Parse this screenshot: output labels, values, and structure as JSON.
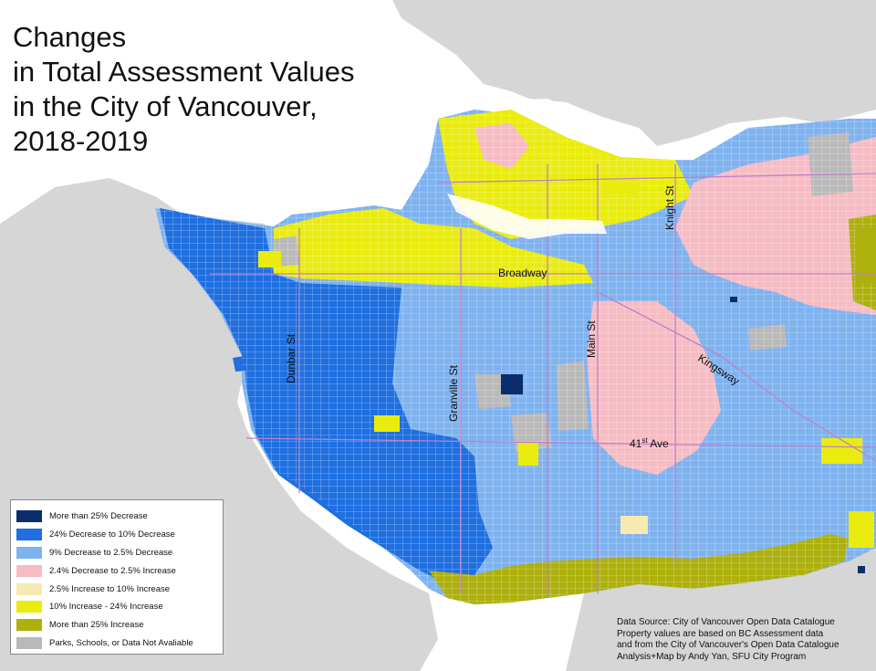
{
  "title_lines": [
    "Changes",
    "in Total Assessment Values",
    "in the City of Vancouver,",
    "2018-2019"
  ],
  "colors": {
    "water": "#ffffff",
    "land": "#d6d6d6",
    "major_decrease": "#0b2d6b",
    "decrease": "#1f6fe0",
    "minor_decrease": "#7fb3ef",
    "stable": "#f6bcc4",
    "minor_increase": "#f6eab0",
    "increase": "#eaec10",
    "major_increase": "#aeb00c",
    "no_data": "#b9b9b9",
    "road": "#c080c8"
  },
  "streets": {
    "broadway": "Broadway",
    "knight": "Knight St",
    "main": "Main St",
    "granville": "Granville St",
    "dunbar": "Dunbar St",
    "kingsway": "Kingsway",
    "ave41": "41",
    "ave41_sup": "st",
    "ave41_suffix": " Ave"
  },
  "legend": [
    {
      "label": "More than 25% Decrease",
      "color": "#0b2d6b"
    },
    {
      "label": "24% Decrease to 10% Decrease",
      "color": "#1f6fe0"
    },
    {
      "label": "9% Decrease to 2.5% Decrease",
      "color": "#7fb3ef"
    },
    {
      "label": "2.4% Decrease to 2.5% Increase",
      "color": "#f6bcc4"
    },
    {
      "label": "2.5% Increase  to 10% Increase",
      "color": "#f6eab0"
    },
    {
      "label": "10% Increase - 24% Increase",
      "color": "#eaec10"
    },
    {
      "label": "More than 25% Increase",
      "color": "#aeb00c"
    },
    {
      "label": "Parks, Schools, or Data Not Avaliable",
      "color": "#b9b9b9"
    }
  ],
  "source_lines": [
    "Data Source: City of Vancouver Open Data Catalogue",
    "Property values are based on BC Assessment data",
    "and from the City of Vancouver's Open Data Catalogue",
    "Analysis+Map by Andy Yan, SFU City Program"
  ]
}
